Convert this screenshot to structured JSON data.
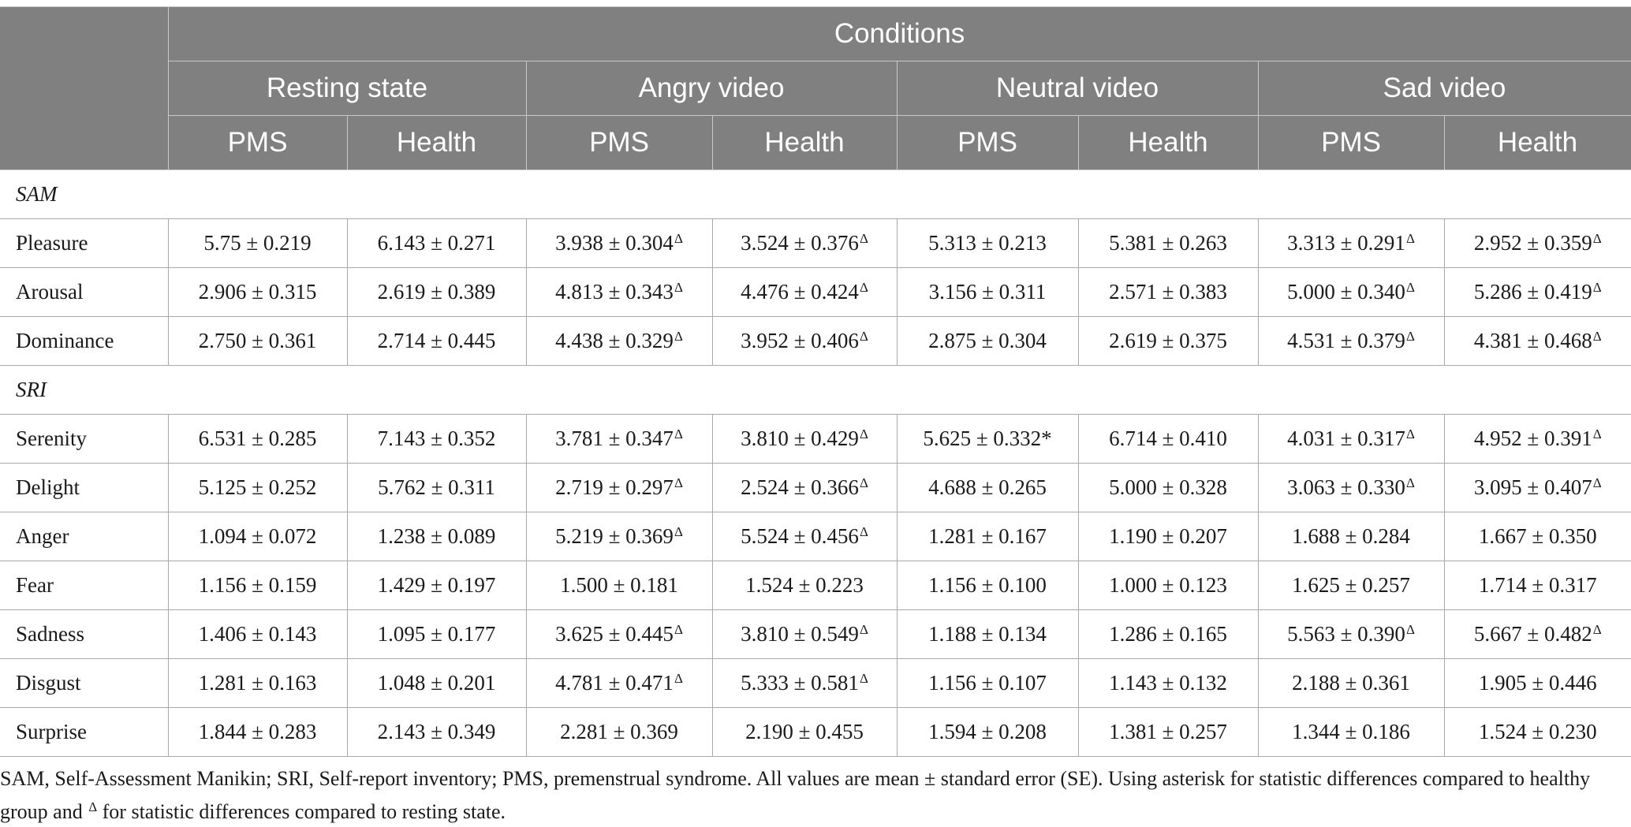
{
  "header": {
    "group_title": "Conditions",
    "conditions": [
      "Resting state",
      "Angry video",
      "Neutral video",
      "Sad video"
    ],
    "subgroups": [
      "PMS",
      "Health",
      "PMS",
      "Health",
      "PMS",
      "Health",
      "PMS",
      "Health"
    ]
  },
  "sections": [
    {
      "title": "SAM",
      "rows": [
        {
          "label": "Pleasure",
          "cells": [
            {
              "v": "5.75 ± 0.219",
              "m": ""
            },
            {
              "v": "6.143 ± 0.271",
              "m": ""
            },
            {
              "v": "3.938 ± 0.304",
              "m": "Δ"
            },
            {
              "v": "3.524 ± 0.376",
              "m": "Δ"
            },
            {
              "v": "5.313 ± 0.213",
              "m": ""
            },
            {
              "v": "5.381 ± 0.263",
              "m": ""
            },
            {
              "v": "3.313 ± 0.291",
              "m": "Δ"
            },
            {
              "v": "2.952 ± 0.359",
              "m": "Δ"
            }
          ]
        },
        {
          "label": "Arousal",
          "cells": [
            {
              "v": "2.906 ± 0.315",
              "m": ""
            },
            {
              "v": "2.619 ± 0.389",
              "m": ""
            },
            {
              "v": "4.813 ± 0.343",
              "m": "Δ"
            },
            {
              "v": "4.476 ± 0.424",
              "m": "Δ"
            },
            {
              "v": "3.156 ± 0.311",
              "m": ""
            },
            {
              "v": "2.571 ± 0.383",
              "m": ""
            },
            {
              "v": "5.000 ± 0.340",
              "m": "Δ"
            },
            {
              "v": "5.286 ± 0.419",
              "m": "Δ"
            }
          ]
        },
        {
          "label": "Dominance",
          "cells": [
            {
              "v": "2.750 ± 0.361",
              "m": ""
            },
            {
              "v": "2.714 ± 0.445",
              "m": ""
            },
            {
              "v": "4.438 ± 0.329",
              "m": "Δ"
            },
            {
              "v": "3.952 ± 0.406",
              "m": "Δ"
            },
            {
              "v": "2.875 ± 0.304",
              "m": ""
            },
            {
              "v": "2.619 ± 0.375",
              "m": ""
            },
            {
              "v": "4.531 ± 0.379",
              "m": "Δ"
            },
            {
              "v": "4.381 ± 0.468",
              "m": "Δ"
            }
          ]
        }
      ]
    },
    {
      "title": "SRI",
      "rows": [
        {
          "label": "Serenity",
          "cells": [
            {
              "v": "6.531 ± 0.285",
              "m": ""
            },
            {
              "v": "7.143 ± 0.352",
              "m": ""
            },
            {
              "v": "3.781 ± 0.347",
              "m": "Δ"
            },
            {
              "v": "3.810 ± 0.429",
              "m": "Δ"
            },
            {
              "v": "5.625 ± 0.332*",
              "m": ""
            },
            {
              "v": "6.714 ± 0.410",
              "m": ""
            },
            {
              "v": "4.031 ± 0.317",
              "m": "Δ"
            },
            {
              "v": "4.952 ± 0.391",
              "m": "Δ"
            }
          ]
        },
        {
          "label": "Delight",
          "cells": [
            {
              "v": "5.125 ± 0.252",
              "m": ""
            },
            {
              "v": "5.762 ± 0.311",
              "m": ""
            },
            {
              "v": "2.719 ± 0.297",
              "m": "Δ"
            },
            {
              "v": "2.524 ± 0.366",
              "m": "Δ"
            },
            {
              "v": "4.688 ± 0.265",
              "m": ""
            },
            {
              "v": "5.000 ± 0.328",
              "m": ""
            },
            {
              "v": "3.063 ± 0.330",
              "m": "Δ"
            },
            {
              "v": "3.095 ± 0.407",
              "m": "Δ"
            }
          ]
        },
        {
          "label": "Anger",
          "cells": [
            {
              "v": "1.094 ± 0.072",
              "m": ""
            },
            {
              "v": "1.238 ± 0.089",
              "m": ""
            },
            {
              "v": "5.219 ± 0.369",
              "m": "Δ"
            },
            {
              "v": "5.524 ± 0.456",
              "m": "Δ"
            },
            {
              "v": "1.281 ± 0.167",
              "m": ""
            },
            {
              "v": "1.190 ± 0.207",
              "m": ""
            },
            {
              "v": "1.688 ± 0.284",
              "m": ""
            },
            {
              "v": "1.667 ± 0.350",
              "m": ""
            }
          ]
        },
        {
          "label": "Fear",
          "cells": [
            {
              "v": "1.156 ± 0.159",
              "m": ""
            },
            {
              "v": "1.429 ± 0.197",
              "m": ""
            },
            {
              "v": "1.500 ± 0.181",
              "m": ""
            },
            {
              "v": "1.524 ± 0.223",
              "m": ""
            },
            {
              "v": "1.156 ± 0.100",
              "m": ""
            },
            {
              "v": "1.000 ± 0.123",
              "m": ""
            },
            {
              "v": "1.625 ± 0.257",
              "m": ""
            },
            {
              "v": "1.714 ± 0.317",
              "m": ""
            }
          ]
        },
        {
          "label": "Sadness",
          "cells": [
            {
              "v": "1.406 ± 0.143",
              "m": ""
            },
            {
              "v": "1.095 ± 0.177",
              "m": ""
            },
            {
              "v": "3.625 ± 0.445",
              "m": "Δ"
            },
            {
              "v": "3.810 ± 0.549",
              "m": "Δ"
            },
            {
              "v": "1.188 ± 0.134",
              "m": ""
            },
            {
              "v": "1.286 ± 0.165",
              "m": ""
            },
            {
              "v": "5.563 ± 0.390",
              "m": "Δ"
            },
            {
              "v": "5.667 ± 0.482",
              "m": "Δ"
            }
          ]
        },
        {
          "label": "Disgust",
          "cells": [
            {
              "v": "1.281 ± 0.163",
              "m": ""
            },
            {
              "v": "1.048 ± 0.201",
              "m": ""
            },
            {
              "v": "4.781 ± 0.471",
              "m": "Δ"
            },
            {
              "v": "5.333 ± 0.581",
              "m": "Δ"
            },
            {
              "v": "1.156 ± 0.107",
              "m": ""
            },
            {
              "v": "1.143 ± 0.132",
              "m": ""
            },
            {
              "v": "2.188 ± 0.361",
              "m": ""
            },
            {
              "v": "1.905 ± 0.446",
              "m": ""
            }
          ]
        },
        {
          "label": "Surprise",
          "cells": [
            {
              "v": "1.844 ± 0.283",
              "m": ""
            },
            {
              "v": "2.143 ± 0.349",
              "m": ""
            },
            {
              "v": "2.281 ± 0.369",
              "m": ""
            },
            {
              "v": "2.190 ± 0.455",
              "m": ""
            },
            {
              "v": "1.594 ± 0.208",
              "m": ""
            },
            {
              "v": "1.381 ± 0.257",
              "m": ""
            },
            {
              "v": "1.344 ± 0.186",
              "m": ""
            },
            {
              "v": "1.524 ± 0.230",
              "m": ""
            }
          ]
        }
      ]
    }
  ],
  "footnote": {
    "line1": "SAM, Self-Assessment Manikin; SRI, Self-report inventory; PMS, premenstrual syndrome. All values are mean ± standard error (SE). Using asterisk for statistic differences compared to healthy",
    "line2_pre": "group and ",
    "line2_mark": "Δ",
    "line2_post": " for statistic differences compared to resting state."
  }
}
